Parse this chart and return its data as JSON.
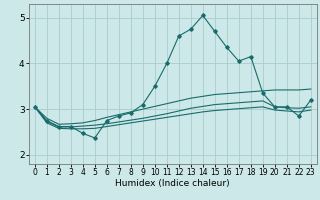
{
  "title": "",
  "xlabel": "Humidex (Indice chaleur)",
  "xlim": [
    -0.5,
    23.5
  ],
  "ylim": [
    1.8,
    5.3
  ],
  "yticks": [
    2,
    3,
    4,
    5
  ],
  "xticks": [
    0,
    1,
    2,
    3,
    4,
    5,
    6,
    7,
    8,
    9,
    10,
    11,
    12,
    13,
    14,
    15,
    16,
    17,
    18,
    19,
    20,
    21,
    22,
    23
  ],
  "bg_color": "#cce8e8",
  "grid_color": "#aacccc",
  "line_color": "#1a6b6b",
  "series_main": [
    3.05,
    2.75,
    2.62,
    2.62,
    2.47,
    2.37,
    2.75,
    2.85,
    2.92,
    3.1,
    3.5,
    4.0,
    4.6,
    4.75,
    5.05,
    4.7,
    4.35,
    4.05,
    4.15,
    3.35,
    3.05,
    3.05,
    2.85,
    3.2
  ],
  "series_upper": [
    3.05,
    2.8,
    2.67,
    2.68,
    2.7,
    2.75,
    2.82,
    2.88,
    2.94,
    3.0,
    3.06,
    3.12,
    3.18,
    3.24,
    3.28,
    3.32,
    3.34,
    3.36,
    3.38,
    3.4,
    3.42,
    3.42,
    3.42,
    3.44
  ],
  "series_mid": [
    3.05,
    2.73,
    2.61,
    2.61,
    2.63,
    2.65,
    2.68,
    2.72,
    2.76,
    2.8,
    2.85,
    2.9,
    2.96,
    3.02,
    3.06,
    3.1,
    3.12,
    3.14,
    3.16,
    3.18,
    3.05,
    3.03,
    3.02,
    3.05
  ],
  "series_lower": [
    3.05,
    2.7,
    2.58,
    2.57,
    2.57,
    2.58,
    2.62,
    2.66,
    2.7,
    2.74,
    2.78,
    2.82,
    2.86,
    2.9,
    2.94,
    2.97,
    2.99,
    3.01,
    3.03,
    3.05,
    2.98,
    2.96,
    2.94,
    2.98
  ]
}
